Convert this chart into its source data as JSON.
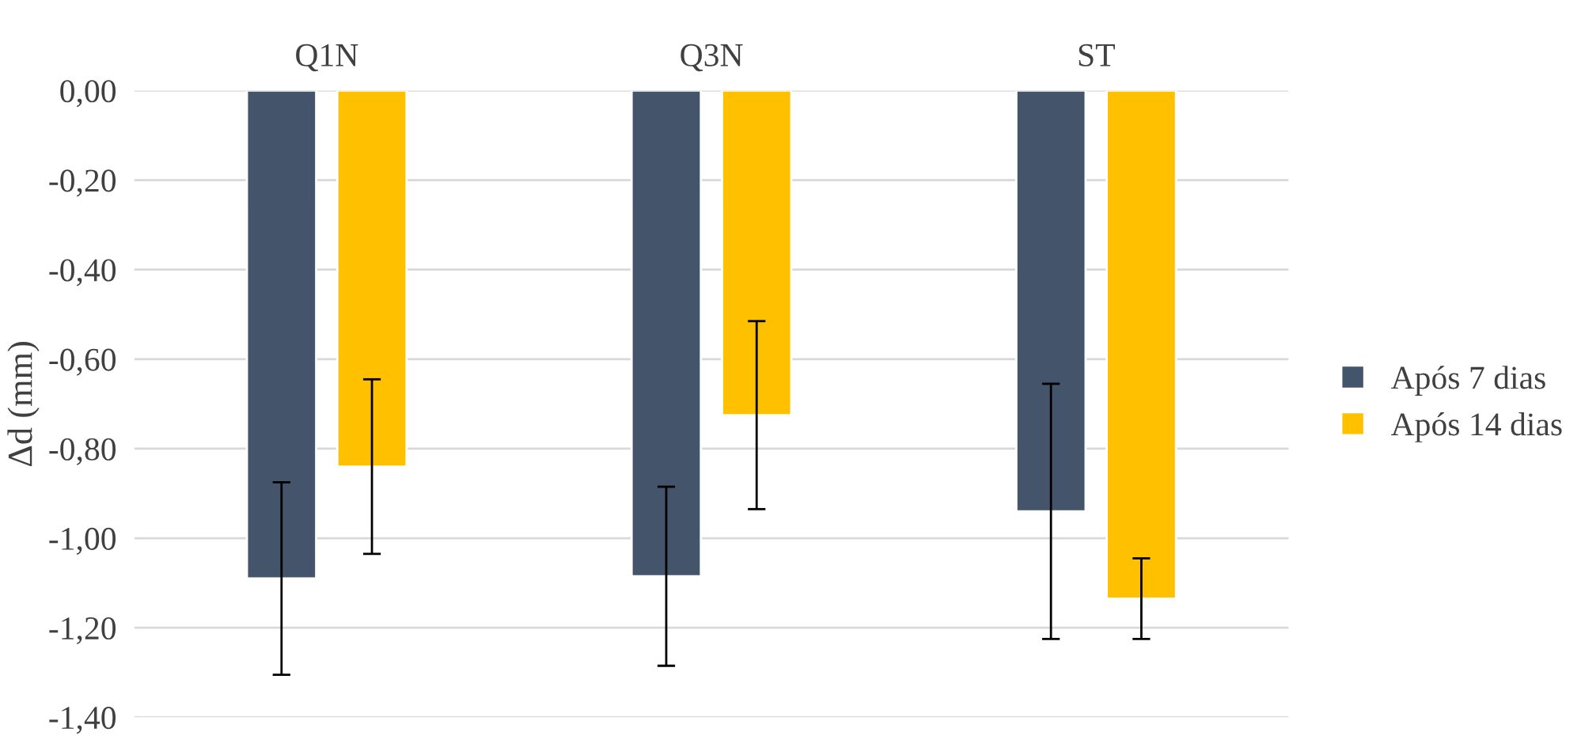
{
  "chart_data": {
    "type": "bar",
    "ylabel": "Δd (mm)",
    "categories": [
      "Q1N",
      "Q3N",
      "ST"
    ],
    "series": [
      {
        "name": "Após 7 dias",
        "color": "#44546a",
        "values": [
          -1.09,
          -1.085,
          -0.94
        ],
        "errors": [
          0.215,
          0.2,
          0.285
        ]
      },
      {
        "name": "Após 14 dias",
        "color": "#ffc000",
        "values": [
          -0.84,
          -0.725,
          -1.135
        ],
        "errors": [
          0.195,
          0.21,
          0.09
        ]
      }
    ],
    "ylim": [
      -1.4,
      0
    ],
    "yticks": [
      {
        "value": -1.4,
        "label": "-1,40"
      },
      {
        "value": -1.2,
        "label": "-1,20"
      },
      {
        "value": -1.0,
        "label": "-1,00"
      },
      {
        "value": -0.8,
        "label": "-0,80"
      },
      {
        "value": -0.6,
        "label": "-0,60"
      },
      {
        "value": -0.4,
        "label": "-0,40"
      },
      {
        "value": -0.2,
        "label": "-0,20"
      },
      {
        "value": 0,
        "label": "0,00"
      }
    ],
    "grid": "y",
    "legend": "right"
  }
}
